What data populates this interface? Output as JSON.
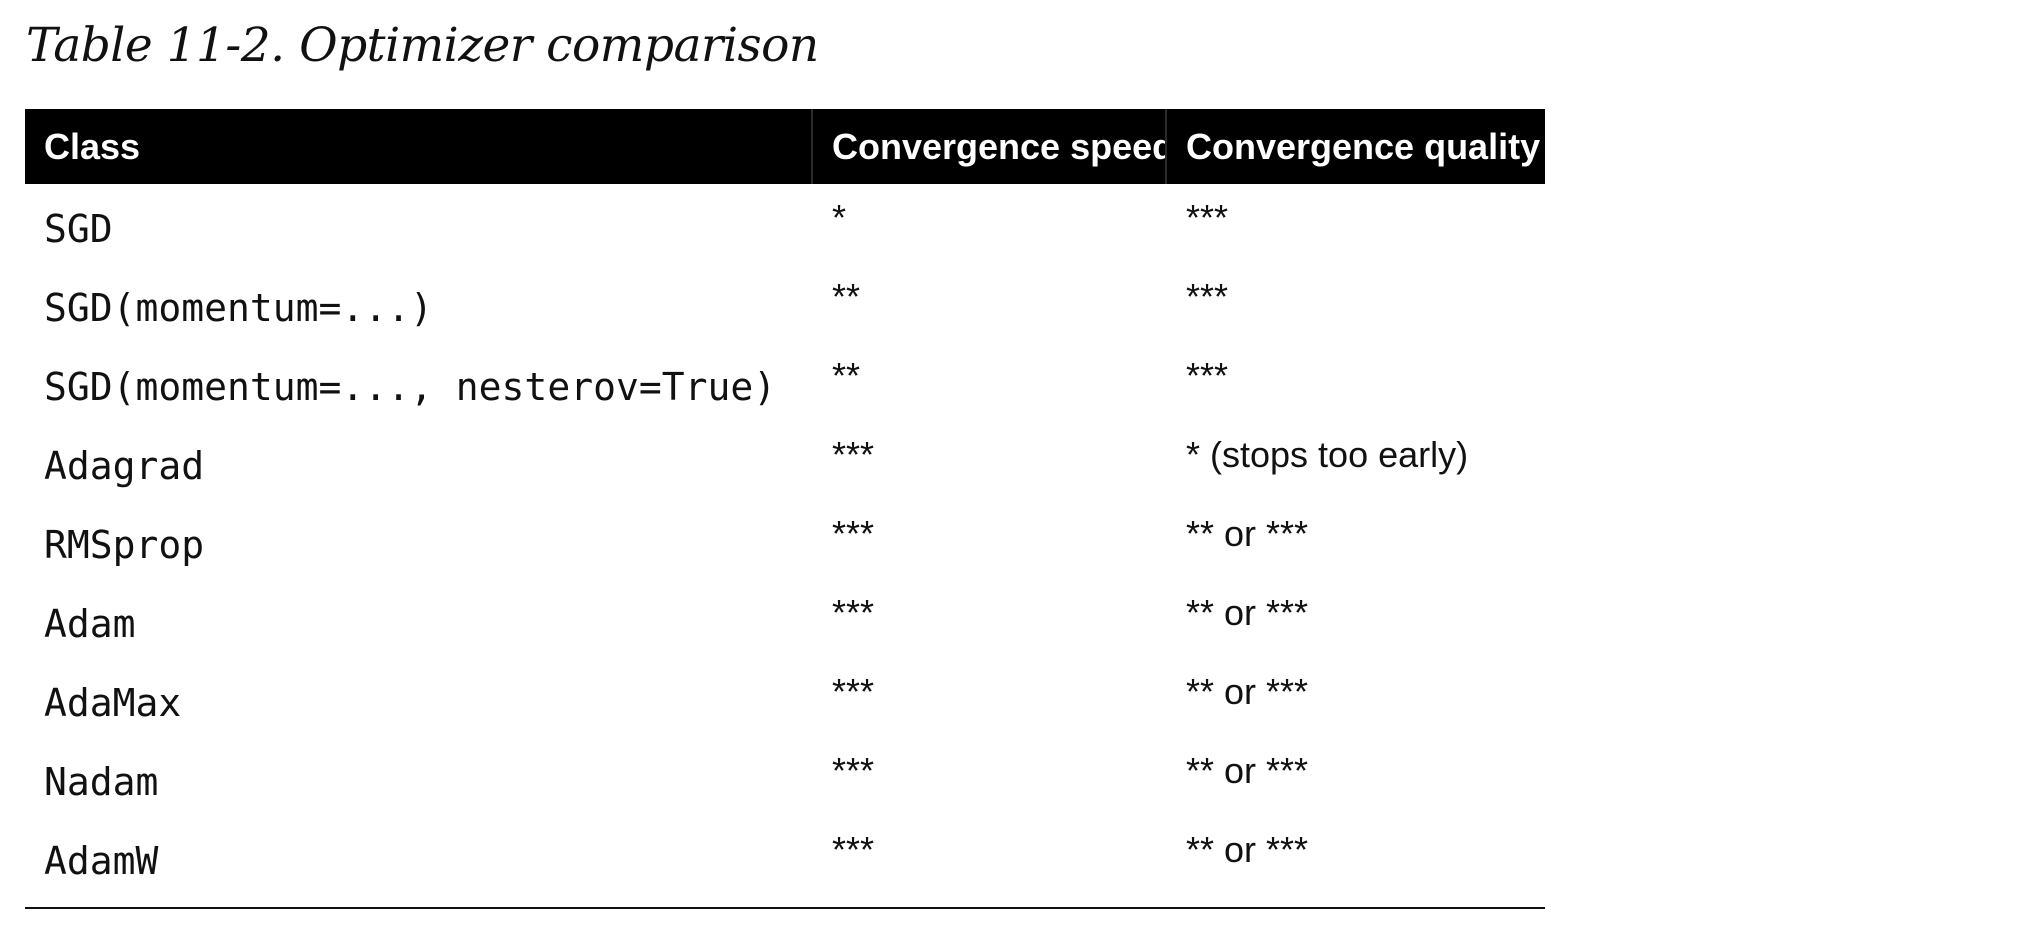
{
  "caption": "Table 11-2. Optimizer comparison",
  "table": {
    "headers": [
      "Class",
      "Convergence speed",
      "Convergence quality"
    ],
    "rows": [
      {
        "class": "SGD",
        "speed": "*",
        "quality": "***"
      },
      {
        "class": "SGD(momentum=...)",
        "speed": "**",
        "quality": "***"
      },
      {
        "class": "SGD(momentum=..., nesterov=True)",
        "speed": "**",
        "quality": "***"
      },
      {
        "class": "Adagrad",
        "speed": "***",
        "quality": "* (stops too early)"
      },
      {
        "class": "RMSprop",
        "speed": "***",
        "quality": "** or ***"
      },
      {
        "class": "Adam",
        "speed": "***",
        "quality": "** or ***"
      },
      {
        "class": "AdaMax",
        "speed": "***",
        "quality": "** or ***"
      },
      {
        "class": "Nadam",
        "speed": "***",
        "quality": "** or ***"
      },
      {
        "class": "AdamW",
        "speed": "***",
        "quality": "** or ***"
      }
    ]
  }
}
